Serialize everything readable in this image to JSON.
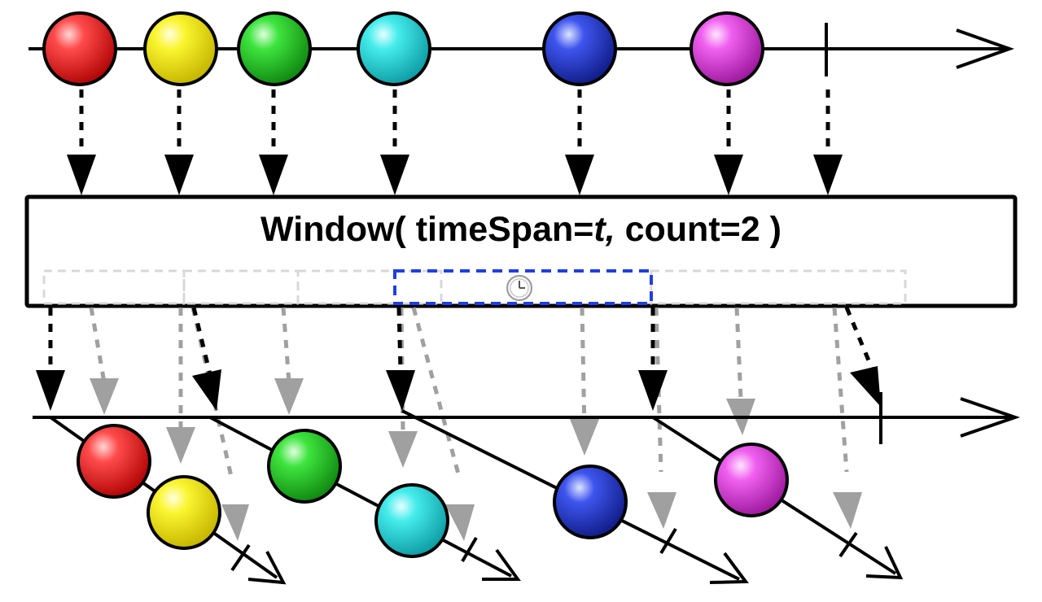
{
  "operator": {
    "name": "Window(",
    "param1": " timeSpan=",
    "param1_value": "t,",
    "param2": " count=2 )"
  },
  "source_stream": {
    "marbles": [
      {
        "color": "red"
      },
      {
        "color": "yellow"
      },
      {
        "color": "green"
      },
      {
        "color": "cyan"
      },
      {
        "color": "blue"
      },
      {
        "color": "magenta"
      }
    ],
    "completes": true
  },
  "output_windows": [
    {
      "marbles": [
        "red",
        "yellow"
      ],
      "closed": true
    },
    {
      "marbles": [
        "green",
        "cyan"
      ],
      "closed": true
    },
    {
      "marbles": [
        "blue"
      ],
      "closed": true
    },
    {
      "marbles": [
        "magenta"
      ],
      "closed": true
    }
  ],
  "output_stream": {
    "completes": true
  },
  "timer": {
    "icon": "clock-icon"
  },
  "colors": {
    "red": "#e8262a",
    "yellow": "#f4ee1c",
    "green": "#2fd42f",
    "cyan": "#33dede",
    "blue": "#2b3fd6",
    "magenta": "#e04ce0",
    "timer_box": "#1f3fe0",
    "ghost": "#a0a0a0"
  }
}
